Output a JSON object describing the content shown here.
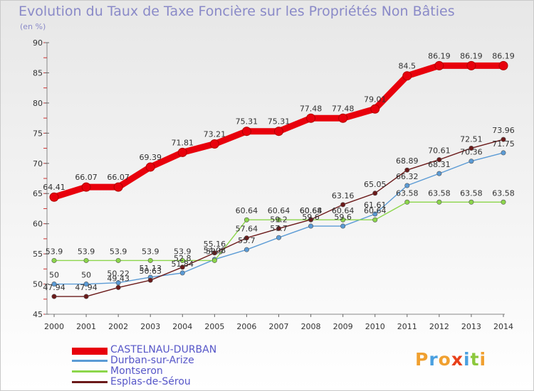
{
  "title": "Evolution du Taux de Taxe Foncière sur les Propriétés Non Bâties",
  "unit": "(en %)",
  "logo": "Proxiti",
  "chart_data": {
    "type": "line",
    "title": "Evolution du Taux de Taxe Foncière sur les Propriétés Non Bâties",
    "ylabel": "(en %)",
    "xlabel": "",
    "x": [
      "2000",
      "2001",
      "2002",
      "2003",
      "2004",
      "2005",
      "2006",
      "2007",
      "2008",
      "2009",
      "2010",
      "2011",
      "2012",
      "2013",
      "2014"
    ],
    "ylim": [
      45,
      90
    ],
    "yticks": [
      45,
      50,
      55,
      60,
      65,
      70,
      75,
      80,
      85,
      90
    ],
    "grid": false,
    "legend_position": "bottom-left",
    "series": [
      {
        "name": "CASTELNAU-DURBAN",
        "color": "#e8000c",
        "values": [
          64.41,
          66.07,
          66.07,
          69.39,
          71.81,
          73.21,
          75.31,
          75.31,
          77.48,
          77.48,
          79.01,
          84.5,
          86.19,
          86.19,
          86.19
        ],
        "labels": [
          "64.41",
          "66.07",
          "66.07",
          "69.39",
          "71.81",
          "73.21",
          "75.31",
          "75.31",
          "77.48",
          "77.48",
          "79.01",
          "84.5",
          "86.19",
          "86.19",
          "86.19"
        ]
      },
      {
        "name": "Durban-sur-Arize",
        "color": "#5b9bd5",
        "values": [
          50,
          50,
          50.22,
          51.13,
          51.84,
          54.08,
          55.7,
          57.7,
          59.6,
          59.6,
          61.61,
          66.32,
          68.31,
          70.36,
          71.75
        ],
        "labels": [
          "50",
          "50",
          "50.22",
          "51.13",
          "51.84",
          "54.08",
          "55.7",
          "57.7",
          "59.6",
          "59.6",
          "61.61",
          "66.32",
          "68.31",
          "70.36",
          "71.75"
        ]
      },
      {
        "name": "Montseron",
        "color": "#8cd64b",
        "values": [
          53.9,
          53.9,
          53.9,
          53.9,
          53.9,
          53.9,
          60.64,
          60.64,
          60.64,
          60.64,
          60.64,
          63.58,
          63.58,
          63.58,
          63.58
        ],
        "labels": [
          "53.9",
          "53.9",
          "53.9",
          "53.9",
          "53.9",
          "53.9",
          "60.64",
          "60.64",
          "60.64",
          "60.64",
          "60.64",
          "63.58",
          "63.58",
          "63.58",
          "63.58"
        ]
      },
      {
        "name": "Esplas-de-Sérou",
        "color": "#6b1a1a",
        "values": [
          47.94,
          47.94,
          49.43,
          50.63,
          52.8,
          55.16,
          57.64,
          59.2,
          60.68,
          63.16,
          65.05,
          68.89,
          70.61,
          72.51,
          73.96
        ],
        "labels": [
          "47.94",
          "47.94",
          "49.43",
          "50.63",
          "52.8",
          "55.16",
          "57.64",
          "59.2",
          "60.68",
          "63.16",
          "65.05",
          "68.89",
          "70.61",
          "72.51",
          "73.96"
        ]
      }
    ]
  },
  "logo_colors": [
    "#f0a030",
    "#4aa0e0",
    "#f0a030",
    "#e8401a",
    "#4aa0e0",
    "#8cc83c",
    "#f0a030"
  ]
}
